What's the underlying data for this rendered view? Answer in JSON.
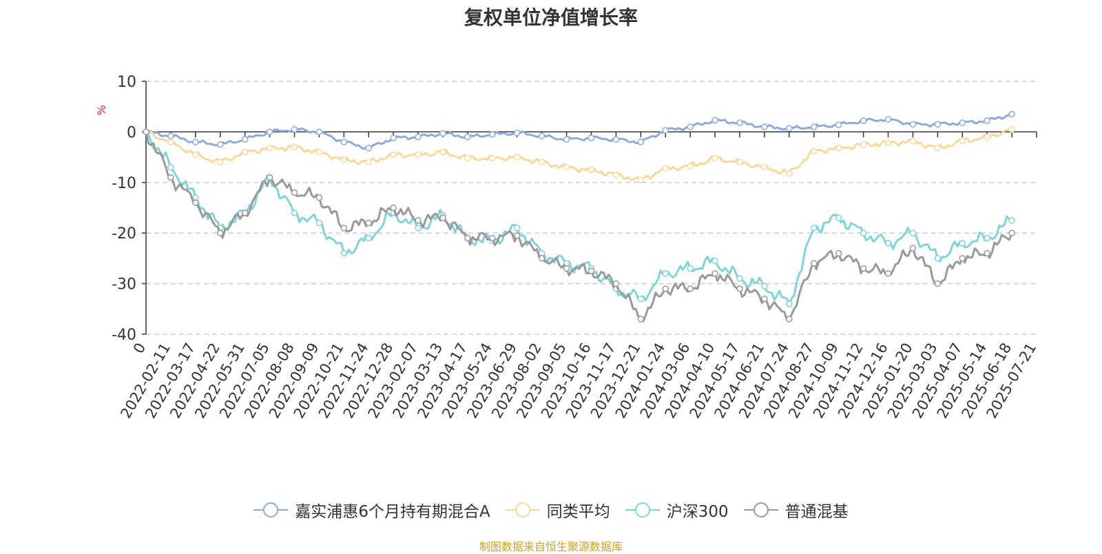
{
  "chart_data": {
    "type": "line",
    "title": "复权单位净值增长率",
    "ylabel": "%",
    "ylim": [
      -40,
      10
    ],
    "yticks": [
      "10",
      "0",
      "-10",
      "-20",
      "-30",
      "-40"
    ],
    "x_start_label": "0",
    "x_tick_labels": [
      "2022-02-11",
      "2022-03-17",
      "2022-04-22",
      "2022-05-31",
      "2022-07-05",
      "2022-08-08",
      "2022-09-09",
      "2022-10-21",
      "2022-11-24",
      "2022-12-28",
      "2023-02-07",
      "2023-03-13",
      "2023-04-17",
      "2023-05-24",
      "2023-06-29",
      "2023-08-02",
      "2023-09-05",
      "2023-10-16",
      "2023-11-17",
      "2023-12-21",
      "2024-01-24",
      "2024-03-06",
      "2024-04-10",
      "2024-05-17",
      "2024-06-21",
      "2024-07-24",
      "2024-08-27",
      "2024-10-09",
      "2024-11-12",
      "2024-12-16",
      "2025-01-20",
      "2025-03-03",
      "2025-04-07",
      "2025-05-14",
      "2025-06-18",
      "2025-07-21"
    ],
    "grid": "horizontal-dashed",
    "legend_position": "bottom",
    "series": [
      {
        "name": "嘉实浦惠6个月持有期混合A",
        "color": "#8eaadb",
        "values": [
          0,
          -0.8,
          -2.0,
          -2.5,
          -1.5,
          0,
          0.5,
          0,
          -2,
          -3.2,
          -1.2,
          -1.0,
          -0.3,
          -1,
          -0.5,
          -0.2,
          -0.8,
          -1.5,
          -1.2,
          -1.5,
          -2,
          0.3,
          1,
          2.3,
          1.8,
          1,
          0.7,
          1,
          1.4,
          2.2,
          2.5,
          1.5,
          1.5,
          1.8,
          2.2,
          3.5
        ]
      },
      {
        "name": "同类平均",
        "color": "#fcd79a",
        "values": [
          0,
          -2,
          -4.5,
          -6,
          -4,
          -3.2,
          -3,
          -4,
          -5.5,
          -6,
          -4.5,
          -4.5,
          -4,
          -5.2,
          -5.2,
          -5,
          -6,
          -7,
          -7.5,
          -8.5,
          -9.5,
          -7.2,
          -6.8,
          -5.2,
          -6,
          -7,
          -8.2,
          -3.8,
          -3.2,
          -2.5,
          -2.2,
          -1.8,
          -3.2,
          -1.8,
          -1.0,
          0.5
        ]
      },
      {
        "name": "沪深300",
        "color": "#7fd3d9",
        "values": [
          0,
          -7,
          -13,
          -19,
          -16,
          -9,
          -16,
          -18,
          -24,
          -21,
          -16,
          -19,
          -16.5,
          -21,
          -21.5,
          -19,
          -24,
          -26,
          -27,
          -31,
          -33,
          -28,
          -27,
          -25.5,
          -29,
          -30.5,
          -34,
          -19,
          -17,
          -20,
          -22,
          -20,
          -25,
          -22,
          -21,
          -17.5
        ]
      },
      {
        "name": "普通混基",
        "color": "#999999",
        "values": [
          0,
          -9,
          -14,
          -20,
          -16,
          -9,
          -12,
          -13,
          -19,
          -18,
          -15,
          -17.5,
          -17,
          -21,
          -21,
          -20.5,
          -25,
          -27,
          -27.5,
          -30,
          -37,
          -31,
          -31,
          -28,
          -31,
          -33,
          -37,
          -26,
          -24,
          -27,
          -28,
          -23,
          -30,
          -25,
          -24,
          -20
        ]
      }
    ]
  },
  "source_text": "制图数据来自恒生聚源数据库"
}
